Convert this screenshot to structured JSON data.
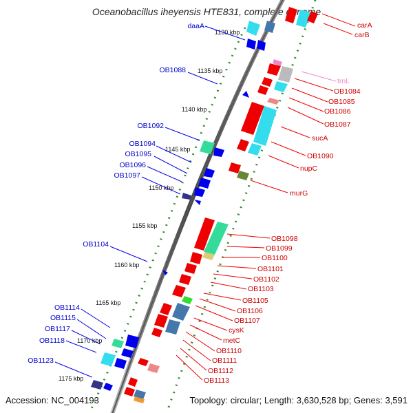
{
  "title": "Oceanobacillus iheyensis HTE831, complete genome",
  "accession": "Accession: NC_004193",
  "topology": "Topology: circular; Length: 3,630,528 bp; Genes: 3,591",
  "kbp_labels": [
    "1130 kbp",
    "1135 kbp",
    "1140 kbp",
    "1145 kbp",
    "1150 kbp",
    "1155 kbp",
    "1160 kbp",
    "1165 kbp",
    "1170 kbp",
    "1175 kbp"
  ],
  "left_labels": [
    "daaA",
    "OB1088",
    "OB1092",
    "OB1094",
    "OB1095",
    "OB1096",
    "OB1097",
    "OB1104",
    "OB1114",
    "OB1115",
    "OB1117",
    "OB1118",
    "OB1123"
  ],
  "right_labels": [
    "carA",
    "carB",
    "trnL",
    "OB1084",
    "OB1085",
    "OB1086",
    "OB1087",
    "sucA",
    "OB1090",
    "nupC",
    "murG",
    "OB1098",
    "OB1099",
    "OB1100",
    "OB1101",
    "OB1102",
    "OB1103",
    "OB1105",
    "OB1106",
    "OB1107",
    "cysK",
    "metC",
    "OB1110",
    "OB1111",
    "OB1112",
    "OB1113"
  ],
  "colors": {
    "forward": "#0000ee",
    "reverse": "#ee0000",
    "trna": "#ee88cc",
    "backbone": "#888888",
    "tick": "#2e8b2e",
    "cyan": "#33ddee",
    "green": "#33dd99",
    "steelblue": "#4477aa",
    "olive": "#668833",
    "gray": "#bbbbbb",
    "navy": "#333388"
  }
}
